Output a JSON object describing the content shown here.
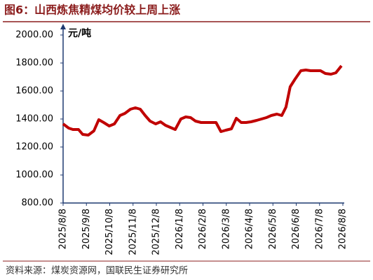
{
  "chart_data": {
    "type": "line",
    "title": "图6：山西炼焦精煤均价较上周上涨",
    "unit_label": "元/吨",
    "source": "资料来源：煤炭资源网，国联民生证券研究所",
    "xlim": [
      0,
      12
    ],
    "xticks": [
      {
        "value": 0,
        "label": "2025/8/8"
      },
      {
        "value": 1,
        "label": "2025/9/8"
      },
      {
        "value": 2,
        "label": "2025/10/8"
      },
      {
        "value": 3,
        "label": "2025/11/8"
      },
      {
        "value": 4,
        "label": "2025/12/8"
      },
      {
        "value": 5,
        "label": "2026/1/8"
      },
      {
        "value": 6,
        "label": "2026/2/8"
      },
      {
        "value": 7,
        "label": "2026/3/8"
      },
      {
        "value": 8,
        "label": "2026/4/8"
      },
      {
        "value": 9,
        "label": "2026/5/8"
      },
      {
        "value": 10,
        "label": "2026/6/8"
      },
      {
        "value": 11,
        "label": "2026/7/8"
      },
      {
        "value": 12,
        "label": "2026/8/8"
      }
    ],
    "ylim": [
      800,
      2000
    ],
    "yticks": [
      {
        "value": 800,
        "label": "800.00"
      },
      {
        "value": 1000,
        "label": "1000.00"
      },
      {
        "value": 1200,
        "label": "1200.00"
      },
      {
        "value": 1400,
        "label": "1400.00"
      },
      {
        "value": 1600,
        "label": "1600.00"
      },
      {
        "value": 1800,
        "label": "1800.00"
      },
      {
        "value": 2000,
        "label": "2000.00"
      }
    ],
    "color": "#c00000",
    "x": [
      0,
      0.24,
      0.42,
      0.66,
      0.84,
      1.08,
      1.32,
      1.53,
      1.74,
      1.98,
      2.2,
      2.44,
      2.65,
      2.89,
      3.1,
      3.31,
      3.52,
      3.73,
      3.97,
      4.18,
      4.39,
      4.6,
      4.81,
      5.05,
      5.26,
      5.47,
      5.68,
      5.92,
      6.14,
      6.35,
      6.56,
      6.77,
      6.98,
      7.22,
      7.43,
      7.64,
      7.85,
      8.06,
      8.3,
      8.51,
      8.72,
      8.93,
      9.17,
      9.38,
      9.56,
      9.74,
      9.95,
      10.2,
      10.41,
      10.62,
      10.83,
      11.04,
      11.25,
      11.49,
      11.7,
      11.94
    ],
    "values": [
      1365,
      1335,
      1325,
      1325,
      1290,
      1285,
      1315,
      1395,
      1375,
      1350,
      1365,
      1425,
      1440,
      1470,
      1480,
      1470,
      1425,
      1385,
      1365,
      1380,
      1355,
      1340,
      1325,
      1400,
      1415,
      1410,
      1385,
      1375,
      1375,
      1375,
      1375,
      1310,
      1320,
      1330,
      1405,
      1375,
      1375,
      1380,
      1390,
      1400,
      1410,
      1425,
      1435,
      1425,
      1485,
      1630,
      1685,
      1745,
      1750,
      1745,
      1745,
      1745,
      1725,
      1720,
      1730,
      1780
    ]
  }
}
